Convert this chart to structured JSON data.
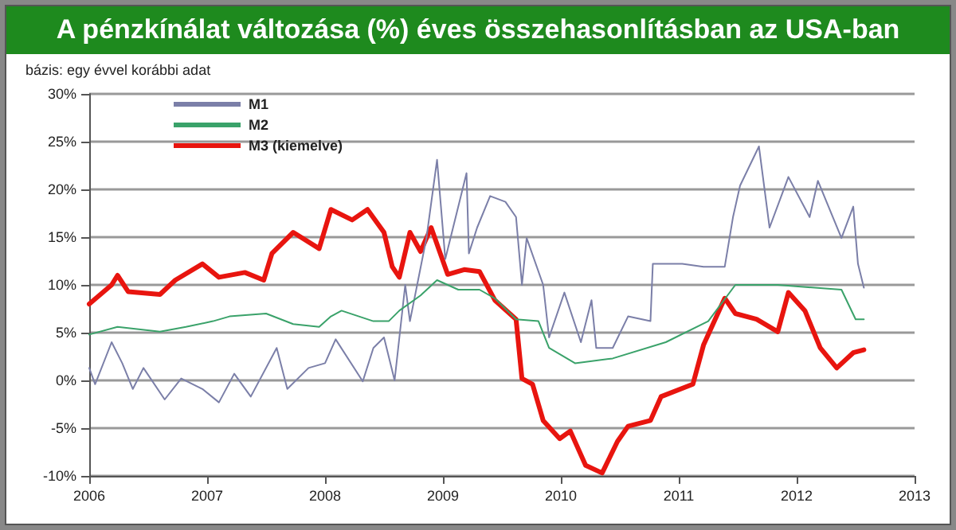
{
  "chart_data": {
    "type": "line",
    "title": "A pénzkínálat változása (%) éves összehasonlításban az USA-ban",
    "subtitle": "bázis: egy évvel korábbi adat",
    "xlim": [
      2006,
      2013
    ],
    "xticks": [
      2006,
      2007,
      2008,
      2009,
      2010,
      2011,
      2012,
      2013
    ],
    "ylim": [
      -10,
      30
    ],
    "yticks": [
      {
        "value": -10,
        "label": "-10%"
      },
      {
        "value": -5,
        "label": "-5%"
      },
      {
        "value": 0,
        "label": "0%"
      },
      {
        "value": 5,
        "label": "5%"
      },
      {
        "value": 10,
        "label": "10%"
      },
      {
        "value": 15,
        "label": "15%"
      },
      {
        "value": 20,
        "label": "20%"
      },
      {
        "value": 25,
        "label": "25%"
      },
      {
        "value": 30,
        "label": "30%"
      }
    ],
    "grid": "y",
    "legend": "top left",
    "marker": "none",
    "series": [
      {
        "name": "M1",
        "color": "#7b7fa8",
        "x": [
          2006.0,
          2006.05,
          2006.19,
          2006.28,
          2006.37,
          2006.46,
          2006.64,
          2006.78,
          2006.96,
          2007.1,
          2007.23,
          2007.37,
          2007.59,
          2007.68,
          2007.86,
          2008.0,
          2008.09,
          2008.32,
          2008.41,
          2008.5,
          2008.59,
          2008.68,
          2008.72,
          2008.86,
          2008.95,
          2009.02,
          2009.2,
          2009.22,
          2009.29,
          2009.4,
          2009.53,
          2009.62,
          2009.67,
          2009.71,
          2009.85,
          2009.9,
          2010.03,
          2010.17,
          2010.26,
          2010.3,
          2010.44,
          2010.57,
          2010.76,
          2010.78,
          2011.03,
          2011.21,
          2011.39,
          2011.46,
          2011.52,
          2011.68,
          2011.77,
          2011.93,
          2012.11,
          2012.18,
          2012.38,
          2012.48,
          2012.52,
          2012.57
        ],
        "values": [
          1.3,
          -0.4,
          4,
          1.8,
          -0.9,
          1.3,
          -2,
          0.2,
          -0.9,
          -2.3,
          0.7,
          -1.7,
          3.4,
          -0.9,
          1.3,
          1.8,
          4.3,
          -0.1,
          3.4,
          4.5,
          0,
          10,
          6.2,
          14.9,
          23.1,
          12.7,
          21.7,
          13.3,
          16,
          19.3,
          18.7,
          17.1,
          10,
          14.9,
          10,
          4.5,
          9.2,
          4,
          8.4,
          3.4,
          3.4,
          6.7,
          6.2,
          12.2,
          12.2,
          11.9,
          11.9,
          17.1,
          20.4,
          24.5,
          16,
          21.3,
          17.1,
          20.9,
          14.9,
          18.2,
          12.2,
          9.7
        ]
      },
      {
        "name": "M2",
        "color": "#3aa26a",
        "x": [
          2006.0,
          2006.24,
          2006.6,
          2006.82,
          2007.05,
          2007.19,
          2007.5,
          2007.73,
          2007.95,
          2008.05,
          2008.14,
          2008.41,
          2008.54,
          2008.63,
          2008.81,
          2008.95,
          2009.13,
          2009.31,
          2009.44,
          2009.62,
          2009.81,
          2009.9,
          2010.12,
          2010.44,
          2010.89,
          2011.25,
          2011.48,
          2011.84,
          2012.38,
          2012.5,
          2012.57
        ],
        "values": [
          4.8,
          5.6,
          5.1,
          5.6,
          6.2,
          6.7,
          7,
          5.9,
          5.6,
          6.7,
          7.3,
          6.2,
          6.2,
          7.3,
          8.9,
          10.5,
          9.5,
          9.5,
          8.6,
          6.4,
          6.2,
          3.4,
          1.8,
          2.3,
          4,
          6.2,
          10,
          10,
          9.5,
          6.4,
          6.4
        ]
      },
      {
        "name": "M3 (kiemelve)",
        "color": "#e8150f",
        "x": [
          2006.0,
          2006.19,
          2006.24,
          2006.33,
          2006.6,
          2006.73,
          2006.96,
          2007.1,
          2007.32,
          2007.48,
          2007.55,
          2007.73,
          2007.95,
          2008.05,
          2008.23,
          2008.36,
          2008.5,
          2008.57,
          2008.63,
          2008.72,
          2008.81,
          2008.9,
          2009.04,
          2009.18,
          2009.31,
          2009.44,
          2009.62,
          2009.67,
          2009.76,
          2009.85,
          2009.99,
          2010.08,
          2010.21,
          2010.35,
          2010.48,
          2010.57,
          2010.76,
          2010.85,
          2011.12,
          2011.21,
          2011.39,
          2011.48,
          2011.66,
          2011.84,
          2011.93,
          2012.07,
          2012.2,
          2012.34,
          2012.48,
          2012.57
        ],
        "values": [
          8,
          10,
          11,
          9.3,
          9,
          10.5,
          12.2,
          10.8,
          11.3,
          10.5,
          13.3,
          15.5,
          13.8,
          17.9,
          16.8,
          17.9,
          15.5,
          11.9,
          10.8,
          15.5,
          13.5,
          16,
          11.1,
          11.6,
          11.4,
          8.4,
          6.4,
          0.2,
          -0.4,
          -4.2,
          -6.1,
          -5.3,
          -8.9,
          -9.7,
          -6.4,
          -4.8,
          -4.2,
          -1.7,
          -0.4,
          3.7,
          8.6,
          7,
          6.4,
          5.1,
          9.2,
          7.3,
          3.4,
          1.3,
          2.9,
          3.2
        ]
      }
    ]
  }
}
